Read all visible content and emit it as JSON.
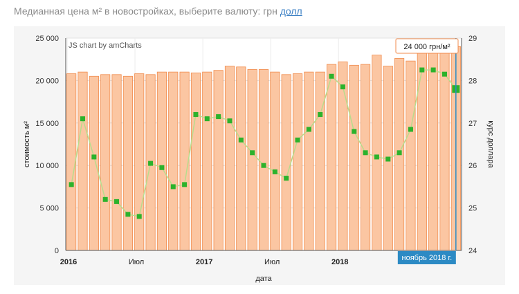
{
  "header": {
    "prefix": "Медианная цена м² в новостройках, выберите валюту: грн",
    "alt_currency_link": "долл"
  },
  "chart_data": {
    "type": "bar",
    "credit": "JS chart by amCharts",
    "xlabel": "дата",
    "ylabel_left": "стоимость м²",
    "ylabel_right": "курс доллара",
    "ylim_left": [
      0,
      25000
    ],
    "ylim_right": [
      24,
      29
    ],
    "left_ticks": [
      "0",
      "5 000",
      "10 000",
      "15 000",
      "20 000",
      "25 000"
    ],
    "right_ticks": [
      "24",
      "25",
      "26",
      "27",
      "28",
      "29"
    ],
    "x_tick_labels": [
      {
        "index": 0,
        "label": "2016",
        "bold": true
      },
      {
        "index": 6,
        "label": "Июл",
        "bold": false
      },
      {
        "index": 12,
        "label": "2017",
        "bold": true
      },
      {
        "index": 18,
        "label": "Июл",
        "bold": false
      },
      {
        "index": 24,
        "label": "2018",
        "bold": true
      }
    ],
    "categories": [
      "2016-01",
      "2016-02",
      "2016-03",
      "2016-04",
      "2016-05",
      "2016-06",
      "2016-07",
      "2016-08",
      "2016-09",
      "2016-10",
      "2016-11",
      "2016-12",
      "2017-01",
      "2017-02",
      "2017-03",
      "2017-04",
      "2017-05",
      "2017-06",
      "2017-07",
      "2017-08",
      "2017-09",
      "2017-10",
      "2017-11",
      "2017-12",
      "2018-01",
      "2018-02",
      "2018-03",
      "2018-04",
      "2018-05",
      "2018-06",
      "2018-07",
      "2018-08",
      "2018-09",
      "2018-10",
      "2018-11"
    ],
    "series": [
      {
        "name": "стоимость м²",
        "axis": "left",
        "type": "bar",
        "values": [
          20800,
          21000,
          20500,
          20700,
          20700,
          20500,
          20800,
          20700,
          21000,
          21000,
          21000,
          20900,
          21000,
          21200,
          21700,
          21600,
          21300,
          21300,
          21000,
          20700,
          20800,
          21000,
          21000,
          21900,
          22200,
          21800,
          21900,
          23000,
          21700,
          22600,
          22300,
          23300,
          23600,
          23900,
          24000
        ]
      },
      {
        "name": "курс доллара",
        "axis": "right",
        "type": "line",
        "values": [
          25.55,
          27.1,
          26.2,
          25.2,
          25.15,
          24.85,
          24.8,
          26.05,
          25.95,
          25.5,
          25.55,
          27.2,
          27.1,
          27.15,
          27.05,
          26.6,
          26.3,
          26.0,
          25.85,
          25.7,
          26.6,
          26.85,
          27.2,
          28.1,
          27.85,
          26.8,
          26.3,
          26.2,
          26.15,
          26.3,
          26.85,
          28.25,
          28.25,
          28.15,
          27.8
        ]
      }
    ],
    "highlight": {
      "index": 34,
      "tooltip": "24 000 грн/м²",
      "date_label": "ноябрь 2018 г."
    },
    "colors": {
      "bar_fill": "#fbc6a2",
      "bar_stroke": "#f08b4c",
      "line": "#b8dc8c",
      "point": "#2cb22c",
      "cursor": "#2c8ac4",
      "tooltip_border": "#f08b4c"
    }
  }
}
